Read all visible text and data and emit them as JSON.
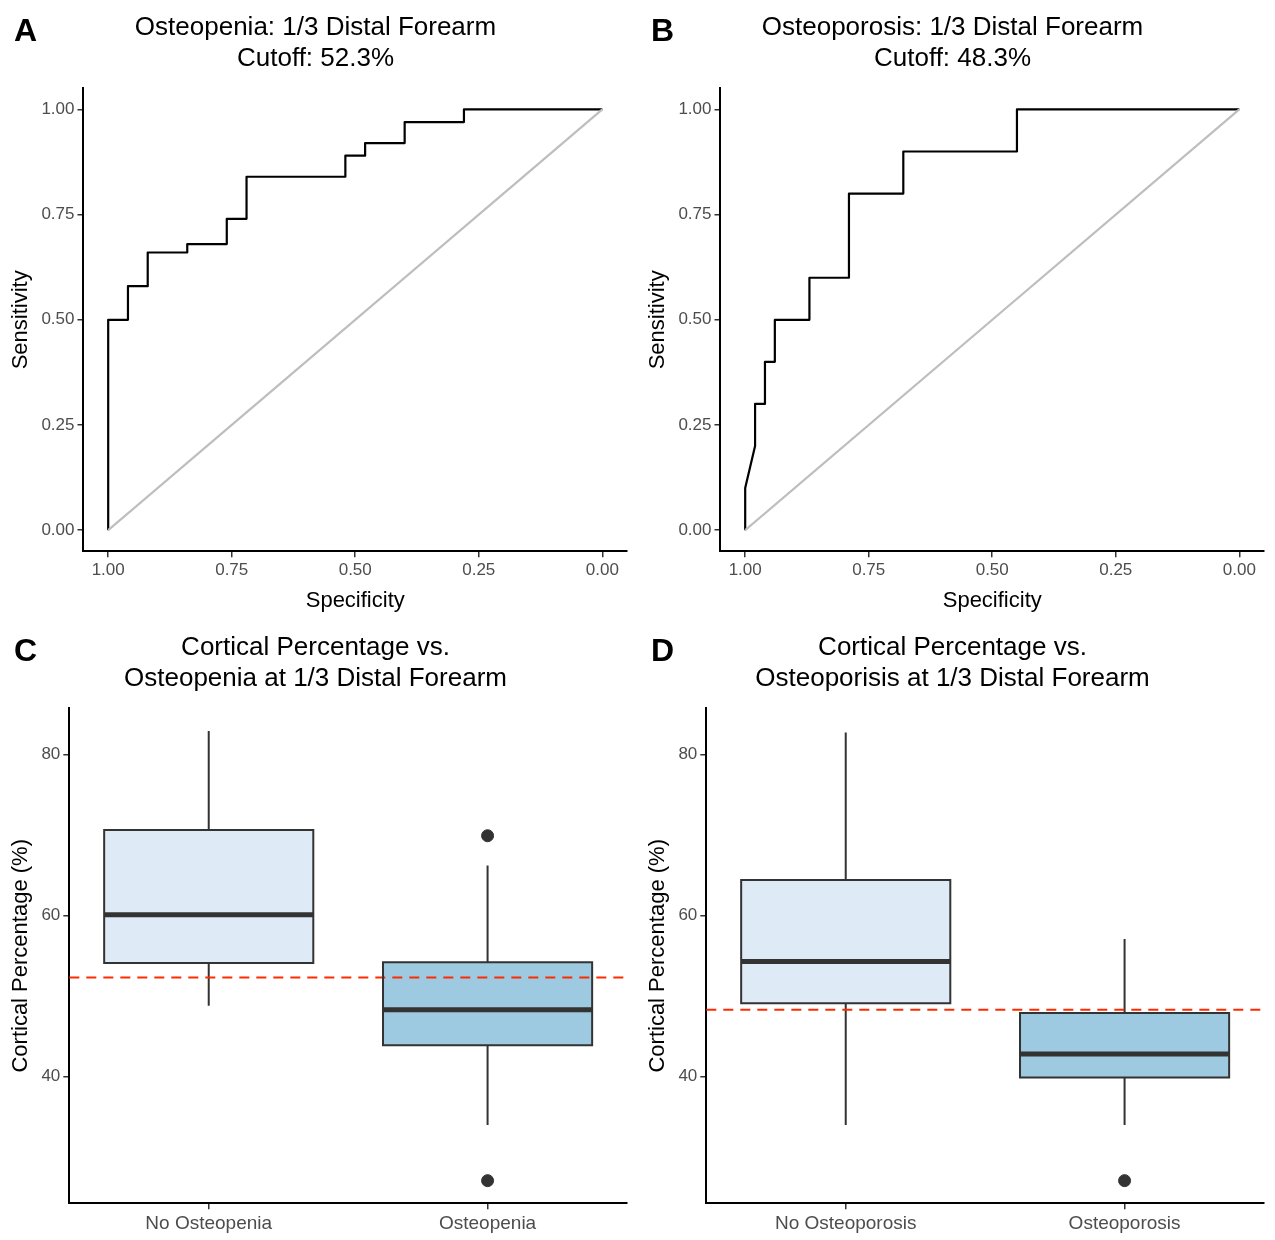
{
  "chart_data": [
    {
      "type": "line",
      "title": "Osteopenia: 1/3 Distal Forearm",
      "subtitle": "Cutoff: 52.3%",
      "xlabel": "Specificity",
      "ylabel": "Sensitivity",
      "annotations": [
        "A"
      ],
      "series": [
        {
          "type": "line",
          "color": "#bebebe",
          "x": [
            1,
            0
          ],
          "values": [
            0,
            1
          ]
        },
        {
          "type": "line",
          "color": "#000000",
          "x": [
            1,
            1,
            0.96,
            0.96,
            0.92,
            0.92,
            0.84,
            0.84,
            0.76,
            0.76,
            0.72,
            0.72,
            0.52,
            0.52,
            0.48,
            0.48,
            0.4,
            0.4,
            0.28,
            0.28,
            0
          ],
          "values": [
            0,
            0.5,
            0.5,
            0.58,
            0.58,
            0.66,
            0.66,
            0.68,
            0.68,
            0.74,
            0.74,
            0.84,
            0.84,
            0.89,
            0.89,
            0.92,
            0.92,
            0.97,
            0.97,
            1,
            1
          ]
        }
      ],
      "xlim": [
        1.05,
        -0.05
      ],
      "ylim": [
        -0.05,
        1.05
      ],
      "xticks": [
        {
          "value": 1,
          "label": "1.00"
        },
        {
          "value": 0.75,
          "label": "0.75"
        },
        {
          "value": 0.5,
          "label": "0.50"
        },
        {
          "value": 0.25,
          "label": "0.25"
        },
        {
          "value": 0,
          "label": "0.00"
        }
      ],
      "yticks": [
        {
          "value": 0,
          "label": "0.00"
        },
        {
          "value": 0.25,
          "label": "0.25"
        },
        {
          "value": 0.5,
          "label": "0.50"
        },
        {
          "value": 0.75,
          "label": "0.75"
        },
        {
          "value": 1,
          "label": "1.00"
        }
      ]
    },
    {
      "type": "line",
      "title": "Osteoporosis: 1/3 Distal Forearm",
      "subtitle": "Cutoff: 48.3%",
      "xlabel": "Specificity",
      "ylabel": "Sensitivity",
      "annotations": [
        "B"
      ],
      "series": [
        {
          "type": "line",
          "color": "#bebebe",
          "x": [
            1,
            0
          ],
          "values": [
            0,
            1
          ]
        },
        {
          "type": "line",
          "color": "#000000",
          "x": [
            1,
            1,
            0.98,
            0.98,
            0.96,
            0.96,
            0.94,
            0.94,
            0.87,
            0.87,
            0.79,
            0.79,
            0.68,
            0.68,
            0.45,
            0.45,
            0
          ],
          "values": [
            0,
            0.1,
            0.2,
            0.3,
            0.3,
            0.4,
            0.4,
            0.5,
            0.5,
            0.6,
            0.6,
            0.8,
            0.8,
            0.9,
            0.9,
            1,
            1
          ]
        }
      ],
      "xlim": [
        1.05,
        -0.05
      ],
      "ylim": [
        -0.05,
        1.05
      ],
      "xticks": [
        {
          "value": 1,
          "label": "1.00"
        },
        {
          "value": 0.75,
          "label": "0.75"
        },
        {
          "value": 0.5,
          "label": "0.50"
        },
        {
          "value": 0.25,
          "label": "0.25"
        },
        {
          "value": 0,
          "label": "0.00"
        }
      ],
      "yticks": [
        {
          "value": 0,
          "label": "0.00"
        },
        {
          "value": 0.25,
          "label": "0.25"
        },
        {
          "value": 0.5,
          "label": "0.50"
        },
        {
          "value": 0.75,
          "label": "0.75"
        },
        {
          "value": 1,
          "label": "1.00"
        }
      ]
    },
    {
      "type": "box",
      "title": "Cortical Percentage vs.\nOsteopenia at 1/3 Distal Forearm",
      "ylabel": "Cortical Percentage (%)",
      "annotations": [
        "C"
      ],
      "categories": [
        "No Osteopenia",
        "Osteopenia"
      ],
      "colors": [
        "#deebf7",
        "#9ecae1"
      ],
      "boxes": [
        {
          "low": 48.8,
          "q1": 54.1,
          "median": 60.1,
          "q3": 70.6,
          "high": 82.9
        },
        {
          "low": 34.0,
          "q1": 43.9,
          "median": 48.3,
          "q3": 54.2,
          "high": 66.2,
          "outliers": [
            69.9,
            27.1
          ]
        }
      ],
      "ylim": [
        24.3,
        85.7
      ],
      "yticks": [
        40,
        60,
        80
      ],
      "ref_lines": [
        {
          "axis": "y",
          "value": 52.3,
          "color": "#ff2a00",
          "line_style": "dashed"
        }
      ]
    },
    {
      "type": "box",
      "title": "Cortical Percentage vs.\nOsteoporisis at 1/3 Distal Forearm",
      "ylabel": "Cortical Percentage (%)",
      "annotations": [
        "D"
      ],
      "categories": [
        "No Osteoporosis",
        "Osteoporosis"
      ],
      "colors": [
        "#deebf7",
        "#9ecae1"
      ],
      "boxes": [
        {
          "low": 34.0,
          "q1": 49.1,
          "median": 54.3,
          "q3": 64.4,
          "high": 82.7
        },
        {
          "low": 34.0,
          "q1": 39.9,
          "median": 42.8,
          "q3": 47.9,
          "high": 57.1,
          "outliers": [
            27.1
          ]
        }
      ],
      "ylim": [
        24.3,
        85.7
      ],
      "yticks": [
        40,
        60,
        80
      ],
      "ref_lines": [
        {
          "axis": "y",
          "value": 48.3,
          "color": "#ff2a00",
          "line_style": "dashed"
        }
      ]
    }
  ]
}
